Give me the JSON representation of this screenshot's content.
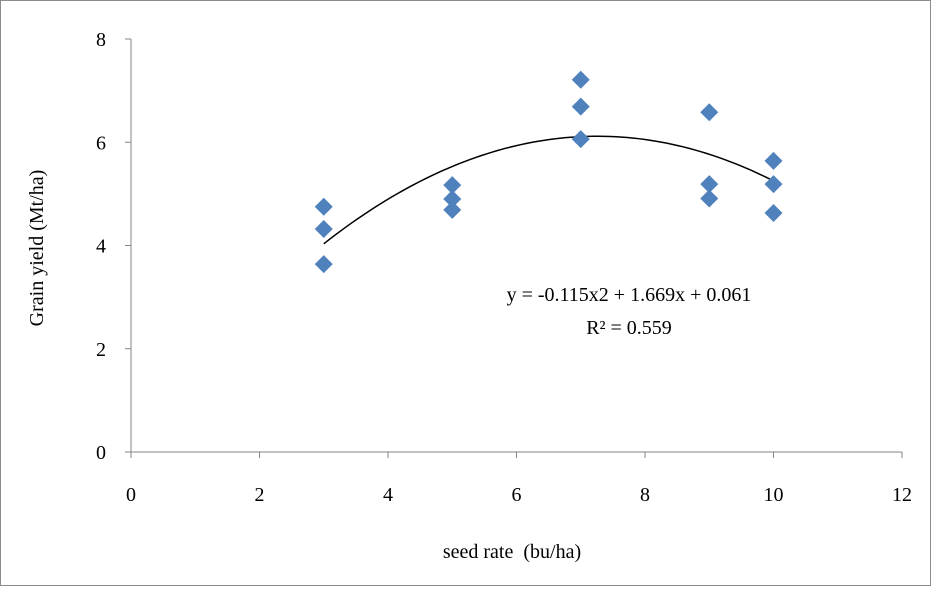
{
  "chart_data": {
    "type": "scatter",
    "title": "",
    "xlabel": "seed rate  (bu/ha)",
    "ylabel": "Grain yield (Mt/ha)",
    "xlim": [
      0,
      12
    ],
    "ylim": [
      0,
      8
    ],
    "x_ticks": [
      "0",
      "2",
      "4",
      "6",
      "8",
      "10",
      "12"
    ],
    "y_ticks": [
      "0",
      "2",
      "4",
      "6",
      "8"
    ],
    "grid": false,
    "legend": "none",
    "series": [
      {
        "marker": "diamond",
        "color": "#4f81bd",
        "points": [
          {
            "x": 3,
            "y": 4.75
          },
          {
            "x": 3,
            "y": 4.32
          },
          {
            "x": 3,
            "y": 3.64
          },
          {
            "x": 5,
            "y": 5.17
          },
          {
            "x": 5,
            "y": 4.9
          },
          {
            "x": 5,
            "y": 4.69
          },
          {
            "x": 7,
            "y": 7.21
          },
          {
            "x": 7,
            "y": 6.69
          },
          {
            "x": 7,
            "y": 6.06
          },
          {
            "x": 9,
            "y": 6.58
          },
          {
            "x": 9,
            "y": 5.19
          },
          {
            "x": 9,
            "y": 4.91
          },
          {
            "x": 10,
            "y": 5.64
          },
          {
            "x": 10,
            "y": 5.19
          },
          {
            "x": 10,
            "y": 4.63
          }
        ]
      }
    ],
    "trendline": {
      "type": "polynomial",
      "coefficients": [
        -0.115,
        1.669,
        0.061
      ],
      "x_range": [
        3,
        10
      ],
      "color": "#000000",
      "equation": "y = -0.115x2 + 1.669x + 0.061",
      "r_squared": "R² = 0.559"
    }
  }
}
